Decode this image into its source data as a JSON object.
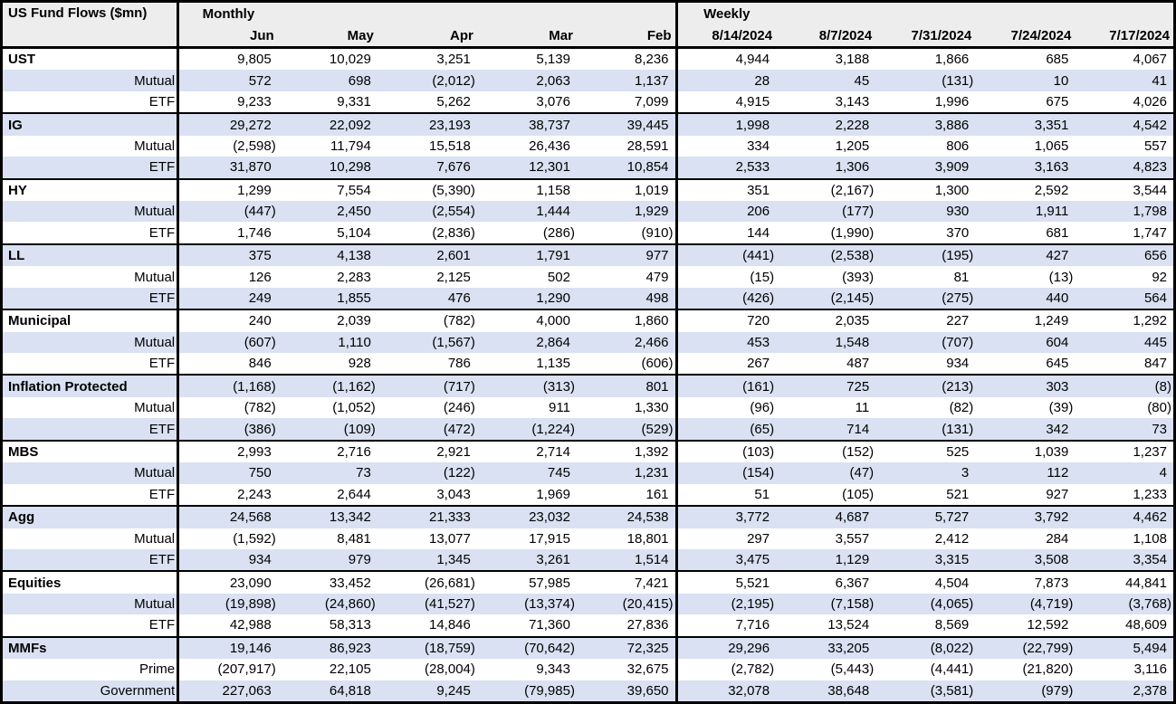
{
  "title": "US Fund Flows ($mn)",
  "header": {
    "monthly_label": "Monthly",
    "weekly_label": "Weekly",
    "monthly_columns": [
      "Jun",
      "May",
      "Apr",
      "Mar",
      "Feb"
    ],
    "weekly_columns": [
      "8/14/2024",
      "8/7/2024",
      "7/31/2024",
      "7/24/2024",
      "7/17/2024"
    ]
  },
  "colors": {
    "row_shade": "#D9E1F2",
    "header_bg": "#EDEDED",
    "border": "#000000"
  },
  "groups": [
    {
      "rows": [
        {
          "label": "UST",
          "monthly": [
            "9,805",
            "10,029",
            "3,251",
            "5,139",
            "8,236"
          ],
          "weekly": [
            "4,944",
            "3,188",
            "1,866",
            "685",
            "4,067"
          ]
        },
        {
          "label": "Mutual",
          "monthly": [
            "572",
            "698",
            "(2,012)",
            "2,063",
            "1,137"
          ],
          "weekly": [
            "28",
            "45",
            "(131)",
            "10",
            "41"
          ]
        },
        {
          "label": "ETF",
          "monthly": [
            "9,233",
            "9,331",
            "5,262",
            "3,076",
            "7,099"
          ],
          "weekly": [
            "4,915",
            "3,143",
            "1,996",
            "675",
            "4,026"
          ]
        }
      ]
    },
    {
      "rows": [
        {
          "label": "IG",
          "monthly": [
            "29,272",
            "22,092",
            "23,193",
            "38,737",
            "39,445"
          ],
          "weekly": [
            "1,998",
            "2,228",
            "3,886",
            "3,351",
            "4,542"
          ]
        },
        {
          "label": "Mutual",
          "monthly": [
            "(2,598)",
            "11,794",
            "15,518",
            "26,436",
            "28,591"
          ],
          "weekly": [
            "334",
            "1,205",
            "806",
            "1,065",
            "557"
          ]
        },
        {
          "label": "ETF",
          "monthly": [
            "31,870",
            "10,298",
            "7,676",
            "12,301",
            "10,854"
          ],
          "weekly": [
            "2,533",
            "1,306",
            "3,909",
            "3,163",
            "4,823"
          ]
        }
      ]
    },
    {
      "rows": [
        {
          "label": "HY",
          "monthly": [
            "1,299",
            "7,554",
            "(5,390)",
            "1,158",
            "1,019"
          ],
          "weekly": [
            "351",
            "(2,167)",
            "1,300",
            "2,592",
            "3,544"
          ]
        },
        {
          "label": "Mutual",
          "monthly": [
            "(447)",
            "2,450",
            "(2,554)",
            "1,444",
            "1,929"
          ],
          "weekly": [
            "206",
            "(177)",
            "930",
            "1,911",
            "1,798"
          ]
        },
        {
          "label": "ETF",
          "monthly": [
            "1,746",
            "5,104",
            "(2,836)",
            "(286)",
            "(910)"
          ],
          "weekly": [
            "144",
            "(1,990)",
            "370",
            "681",
            "1,747"
          ]
        }
      ]
    },
    {
      "rows": [
        {
          "label": "LL",
          "monthly": [
            "375",
            "4,138",
            "2,601",
            "1,791",
            "977"
          ],
          "weekly": [
            "(441)",
            "(2,538)",
            "(195)",
            "427",
            "656"
          ]
        },
        {
          "label": "Mutual",
          "monthly": [
            "126",
            "2,283",
            "2,125",
            "502",
            "479"
          ],
          "weekly": [
            "(15)",
            "(393)",
            "81",
            "(13)",
            "92"
          ]
        },
        {
          "label": "ETF",
          "monthly": [
            "249",
            "1,855",
            "476",
            "1,290",
            "498"
          ],
          "weekly": [
            "(426)",
            "(2,145)",
            "(275)",
            "440",
            "564"
          ]
        }
      ]
    },
    {
      "rows": [
        {
          "label": "Municipal",
          "monthly": [
            "240",
            "2,039",
            "(782)",
            "4,000",
            "1,860"
          ],
          "weekly": [
            "720",
            "2,035",
            "227",
            "1,249",
            "1,292"
          ]
        },
        {
          "label": "Mutual",
          "monthly": [
            "(607)",
            "1,110",
            "(1,567)",
            "2,864",
            "2,466"
          ],
          "weekly": [
            "453",
            "1,548",
            "(707)",
            "604",
            "445"
          ]
        },
        {
          "label": "ETF",
          "monthly": [
            "846",
            "928",
            "786",
            "1,135",
            "(606)"
          ],
          "weekly": [
            "267",
            "487",
            "934",
            "645",
            "847"
          ]
        }
      ]
    },
    {
      "rows": [
        {
          "label": "Inflation Protected",
          "monthly": [
            "(1,168)",
            "(1,162)",
            "(717)",
            "(313)",
            "801"
          ],
          "weekly": [
            "(161)",
            "725",
            "(213)",
            "303",
            "(8)"
          ]
        },
        {
          "label": "Mutual",
          "monthly": [
            "(782)",
            "(1,052)",
            "(246)",
            "911",
            "1,330"
          ],
          "weekly": [
            "(96)",
            "11",
            "(82)",
            "(39)",
            "(80)"
          ]
        },
        {
          "label": "ETF",
          "monthly": [
            "(386)",
            "(109)",
            "(472)",
            "(1,224)",
            "(529)"
          ],
          "weekly": [
            "(65)",
            "714",
            "(131)",
            "342",
            "73"
          ]
        }
      ]
    },
    {
      "rows": [
        {
          "label": "MBS",
          "monthly": [
            "2,993",
            "2,716",
            "2,921",
            "2,714",
            "1,392"
          ],
          "weekly": [
            "(103)",
            "(152)",
            "525",
            "1,039",
            "1,237"
          ]
        },
        {
          "label": "Mutual",
          "monthly": [
            "750",
            "73",
            "(122)",
            "745",
            "1,231"
          ],
          "weekly": [
            "(154)",
            "(47)",
            "3",
            "112",
            "4"
          ]
        },
        {
          "label": "ETF",
          "monthly": [
            "2,243",
            "2,644",
            "3,043",
            "1,969",
            "161"
          ],
          "weekly": [
            "51",
            "(105)",
            "521",
            "927",
            "1,233"
          ]
        }
      ]
    },
    {
      "rows": [
        {
          "label": "Agg",
          "monthly": [
            "24,568",
            "13,342",
            "21,333",
            "23,032",
            "24,538"
          ],
          "weekly": [
            "3,772",
            "4,687",
            "5,727",
            "3,792",
            "4,462"
          ]
        },
        {
          "label": "Mutual",
          "monthly": [
            "(1,592)",
            "8,481",
            "13,077",
            "17,915",
            "18,801"
          ],
          "weekly": [
            "297",
            "3,557",
            "2,412",
            "284",
            "1,108"
          ]
        },
        {
          "label": "ETF",
          "monthly": [
            "934",
            "979",
            "1,345",
            "3,261",
            "1,514"
          ],
          "weekly": [
            "3,475",
            "1,129",
            "3,315",
            "3,508",
            "3,354"
          ]
        }
      ]
    },
    {
      "rows": [
        {
          "label": "Equities",
          "monthly": [
            "23,090",
            "33,452",
            "(26,681)",
            "57,985",
            "7,421"
          ],
          "weekly": [
            "5,521",
            "6,367",
            "4,504",
            "7,873",
            "44,841"
          ]
        },
        {
          "label": "Mutual",
          "monthly": [
            "(19,898)",
            "(24,860)",
            "(41,527)",
            "(13,374)",
            "(20,415)"
          ],
          "weekly": [
            "(2,195)",
            "(7,158)",
            "(4,065)",
            "(4,719)",
            "(3,768)"
          ]
        },
        {
          "label": "ETF",
          "monthly": [
            "42,988",
            "58,313",
            "14,846",
            "71,360",
            "27,836"
          ],
          "weekly": [
            "7,716",
            "13,524",
            "8,569",
            "12,592",
            "48,609"
          ]
        }
      ]
    },
    {
      "rows": [
        {
          "label": "MMFs",
          "monthly": [
            "19,146",
            "86,923",
            "(18,759)",
            "(70,642)",
            "72,325"
          ],
          "weekly": [
            "29,296",
            "33,205",
            "(8,022)",
            "(22,799)",
            "5,494"
          ]
        },
        {
          "label": "Prime",
          "monthly": [
            "(207,917)",
            "22,105",
            "(28,004)",
            "9,343",
            "32,675"
          ],
          "weekly": [
            "(2,782)",
            "(5,443)",
            "(4,441)",
            "(21,820)",
            "3,116"
          ]
        },
        {
          "label": "Government",
          "monthly": [
            "227,063",
            "64,818",
            "9,245",
            "(79,985)",
            "39,650"
          ],
          "weekly": [
            "32,078",
            "38,648",
            "(3,581)",
            "(979)",
            "2,378"
          ]
        }
      ]
    }
  ]
}
